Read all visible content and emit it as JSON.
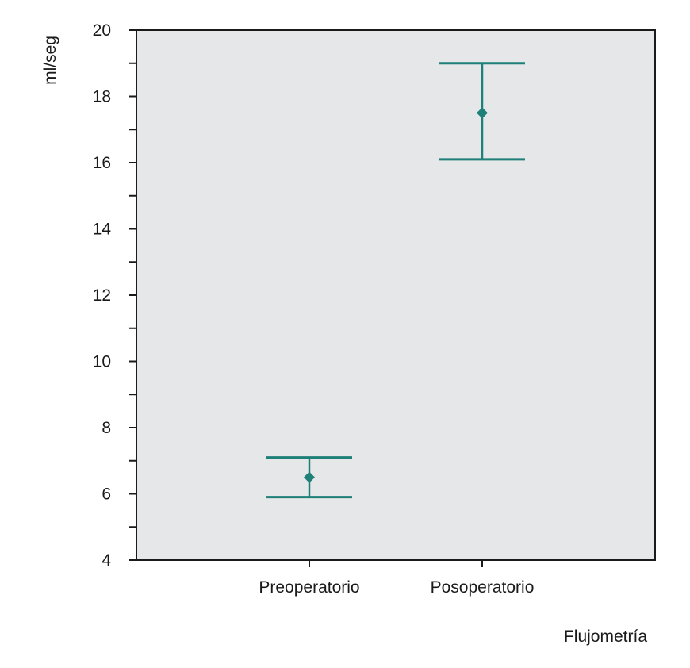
{
  "chart_data": {
    "type": "errorbar",
    "title": "",
    "xlabel": "Flujometría",
    "ylabel": "ml/seg",
    "ylim": [
      4,
      20
    ],
    "yticks": [
      4,
      6,
      8,
      10,
      12,
      14,
      16,
      18,
      20
    ],
    "ytick_labels": [
      "4",
      "6",
      "8",
      "10",
      "12",
      "14",
      "16",
      "18",
      "20"
    ],
    "categories": [
      "Preoperatorio",
      "Posoperatorio"
    ],
    "series": [
      {
        "mean": [
          6.5,
          17.5
        ],
        "lower": [
          5.9,
          16.1
        ],
        "upper": [
          7.1,
          19.0
        ]
      }
    ],
    "grid": false,
    "legend": "none",
    "colors": {
      "plot_background": "#e6e7e8",
      "marker": "#1e8078",
      "axis": "#1a1a1a",
      "text": "#1a1a1a"
    }
  }
}
